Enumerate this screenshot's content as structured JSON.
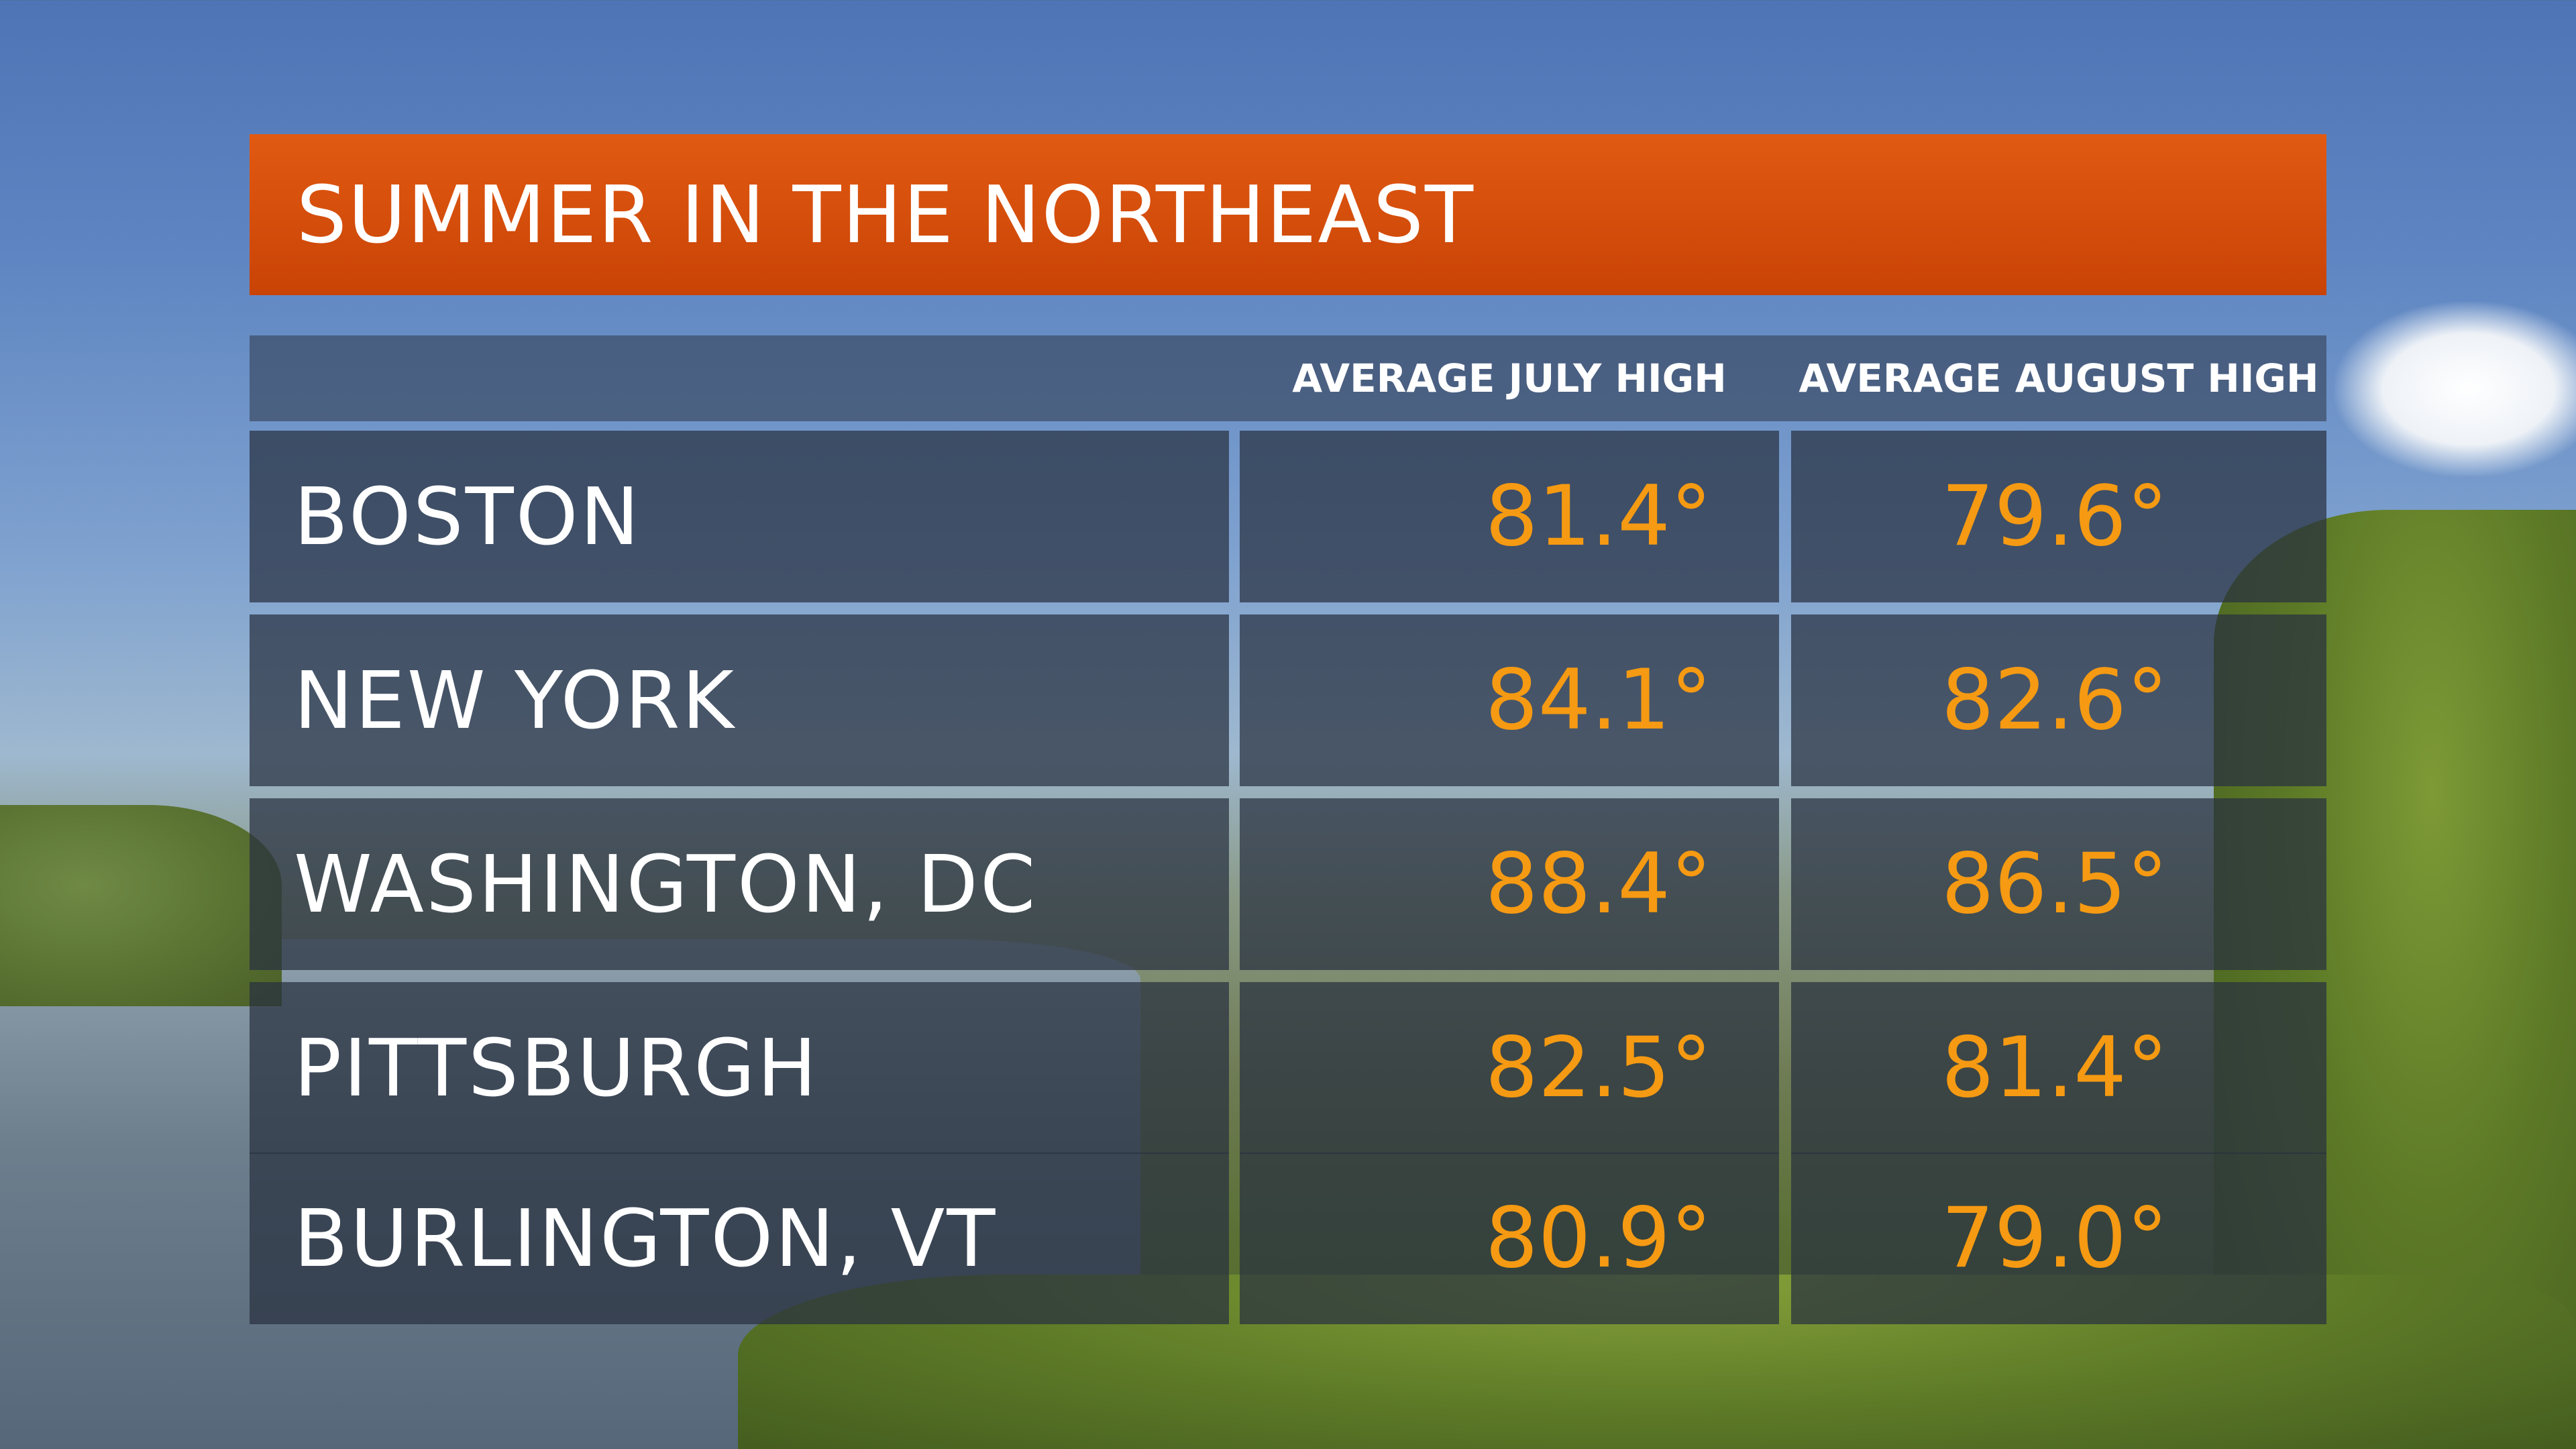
{
  "chart_data": {
    "type": "table",
    "title": "SUMMER IN THE NORTHEAST",
    "columns": [
      "",
      "AVERAGE JULY HIGH",
      "AVERAGE AUGUST HIGH"
    ],
    "rows": [
      {
        "city": "BOSTON",
        "july": "81.4°",
        "august": "79.6°"
      },
      {
        "city": "NEW YORK",
        "july": "84.1°",
        "august": "82.6°"
      },
      {
        "city": "WASHINGTON, DC",
        "july": "88.4°",
        "august": "86.5°"
      },
      {
        "city": "PITTSBURGH",
        "july": "82.5°",
        "august": "81.4°"
      },
      {
        "city": "BURLINGTON, VT",
        "july": "80.9°",
        "august": "79.0°"
      }
    ],
    "series": [
      {
        "name": "AVERAGE JULY HIGH",
        "values": [
          81.4,
          84.1,
          88.4,
          82.5,
          80.9
        ]
      },
      {
        "name": "AVERAGE AUGUST HIGH",
        "values": [
          79.6,
          82.6,
          86.5,
          81.4,
          79.0
        ]
      }
    ],
    "categories": [
      "BOSTON",
      "NEW YORK",
      "WASHINGTON, DC",
      "PITTSBURGH",
      "BURLINGTON, VT"
    ]
  },
  "colors": {
    "title_bar": "#d9500c",
    "value_text": "#f59a12",
    "label_text": "#ffffff"
  }
}
